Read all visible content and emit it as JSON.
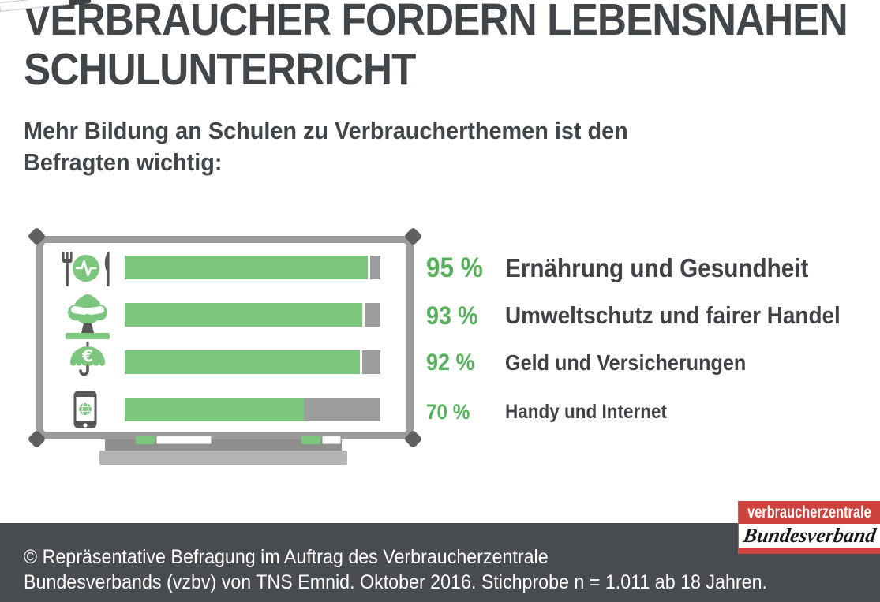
{
  "title": {
    "line1": "VERBRAUCHER FORDERN LEBENSNAHEN",
    "line2": "SCHULUNTERRICHT"
  },
  "subtitle": {
    "line1": "Mehr Bildung an Schulen zu Verbraucherthemen ist den",
    "line2": "Befragten wichtig:"
  },
  "chart_data": {
    "type": "bar",
    "orientation": "horizontal",
    "title": "Verbraucher fordern lebensnahen Schulunterricht",
    "categories": [
      "Ernährung und Gesundheit",
      "Umweltschutz und fairer Handel",
      "Geld und Versicherungen",
      "Handy und Internet"
    ],
    "values": [
      95,
      93,
      92,
      70
    ],
    "value_labels": [
      "95 %",
      "93 %",
      "92 %",
      "70 %"
    ],
    "unit": "%",
    "xlim": [
      0,
      100
    ],
    "grid": false,
    "legend_position": "right-of-bars",
    "icons": [
      "cutlery-health-icon",
      "tree-handshake-icon",
      "umbrella-euro-icon",
      "smartphone-globe-icon"
    ],
    "colors": {
      "bar_fill": "#7dc67e",
      "bar_remainder": "#9d9d9c",
      "value_text": "#58b05d",
      "label_text": "#3f4347"
    }
  },
  "illustration": {
    "name": "whiteboard-with-markers",
    "frame_color": "#9b9b9a",
    "corner_color": "#5f5f5e"
  },
  "logo": {
    "line1": "verbraucherzentrale",
    "line2": "Bundesverband",
    "red": "#ce423e"
  },
  "footer": {
    "line1": "© Repräsentative Befragung im Auftrag des Verbraucherzentrale",
    "line2": "Bundesverbands (vzbv) von TNS Emnid. Oktober 2016. Stichprobe n = 1.011 ab 18 Jahren.",
    "background": "#484c50"
  }
}
